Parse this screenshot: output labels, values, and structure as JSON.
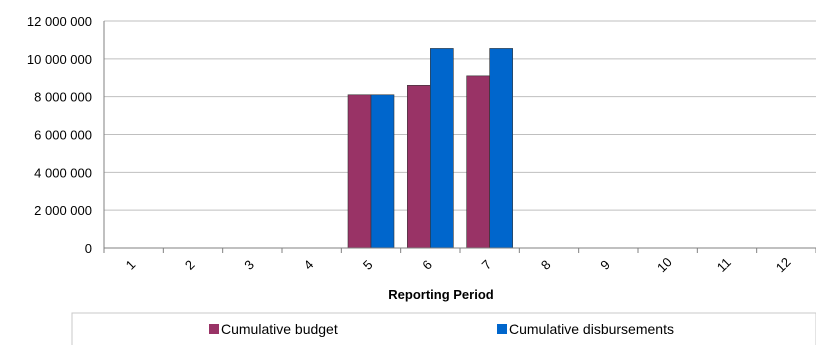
{
  "chart_data": {
    "type": "bar",
    "categories": [
      "1",
      "2",
      "3",
      "4",
      "5",
      "6",
      "7",
      "8",
      "9",
      "10",
      "11",
      "12"
    ],
    "series": [
      {
        "name": "Cumulative budget",
        "color": "#993366",
        "values": [
          0,
          0,
          0,
          0,
          8100000,
          8600000,
          9100000,
          0,
          0,
          0,
          0,
          0
        ]
      },
      {
        "name": "Cumulative disbursements",
        "color": "#0066CC",
        "values": [
          0,
          0,
          0,
          0,
          8100000,
          10550000,
          10550000,
          0,
          0,
          0,
          0,
          0
        ]
      }
    ],
    "yticks": [
      "0",
      "2 000 000",
      "4 000 000",
      "6 000 000",
      "8 000 000",
      "10 000 000",
      "12 000 000"
    ],
    "ylim": [
      0,
      12000000
    ],
    "xlabel": "Reporting Period",
    "ylabel": "",
    "grid": true,
    "legend_position": "bottom"
  }
}
